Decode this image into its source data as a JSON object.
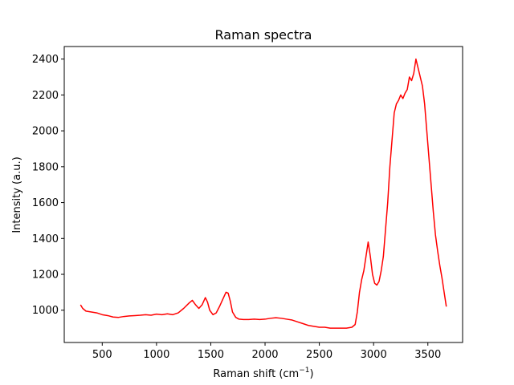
{
  "chart_data": {
    "type": "line",
    "title": "Raman spectra",
    "xlabel": "Raman shift (cm",
    "xlabel_sup": "−1",
    "xlabel_end": ")",
    "ylabel": "Intensity (a.u.)",
    "xlim": [
      150,
      3820
    ],
    "ylim": [
      820,
      2470
    ],
    "xticks": [
      500,
      1000,
      1500,
      2000,
      2500,
      3000,
      3500
    ],
    "yticks": [
      1000,
      1200,
      1400,
      1600,
      1800,
      2000,
      2200,
      2400
    ],
    "grid": false,
    "colors": {
      "line": "#ff0000",
      "axes": "#000000",
      "background": "#ffffff"
    },
    "series": [
      {
        "x": [
          300,
          320,
          350,
          400,
          450,
          500,
          550,
          600,
          650,
          700,
          750,
          800,
          850,
          900,
          950,
          1000,
          1050,
          1100,
          1150,
          1200,
          1250,
          1300,
          1330,
          1360,
          1390,
          1420,
          1450,
          1470,
          1490,
          1520,
          1550,
          1580,
          1610,
          1640,
          1660,
          1680,
          1700,
          1730,
          1760,
          1800,
          1850,
          1900,
          1950,
          2000,
          2050,
          2100,
          2150,
          2200,
          2250,
          2300,
          2350,
          2400,
          2450,
          2500,
          2550,
          2600,
          2650,
          2700,
          2750,
          2800,
          2830,
          2850,
          2870,
          2890,
          2910,
          2930,
          2950,
          2970,
          2990,
          3010,
          3030,
          3050,
          3070,
          3090,
          3110,
          3130,
          3150,
          3170,
          3190,
          3210,
          3230,
          3250,
          3270,
          3290,
          3310,
          3330,
          3350,
          3370,
          3390,
          3410,
          3430,
          3450,
          3470,
          3490,
          3510,
          3530,
          3550,
          3570,
          3590,
          3610,
          3630,
          3650,
          3670
        ],
        "y": [
          1030,
          1010,
          995,
          990,
          985,
          975,
          970,
          962,
          960,
          965,
          968,
          970,
          972,
          975,
          972,
          978,
          975,
          980,
          975,
          985,
          1010,
          1040,
          1055,
          1030,
          1010,
          1030,
          1070,
          1045,
          1000,
          975,
          985,
          1020,
          1060,
          1100,
          1095,
          1050,
          990,
          960,
          950,
          948,
          948,
          950,
          948,
          950,
          955,
          958,
          955,
          950,
          945,
          935,
          925,
          915,
          910,
          905,
          905,
          900,
          900,
          900,
          900,
          905,
          920,
          990,
          1100,
          1170,
          1220,
          1300,
          1380,
          1300,
          1200,
          1150,
          1140,
          1160,
          1220,
          1300,
          1450,
          1600,
          1800,
          1950,
          2100,
          2150,
          2170,
          2200,
          2180,
          2210,
          2230,
          2300,
          2280,
          2320,
          2400,
          2350,
          2300,
          2250,
          2150,
          2000,
          1850,
          1700,
          1550,
          1420,
          1330,
          1250,
          1180,
          1100,
          1020
        ]
      }
    ]
  }
}
